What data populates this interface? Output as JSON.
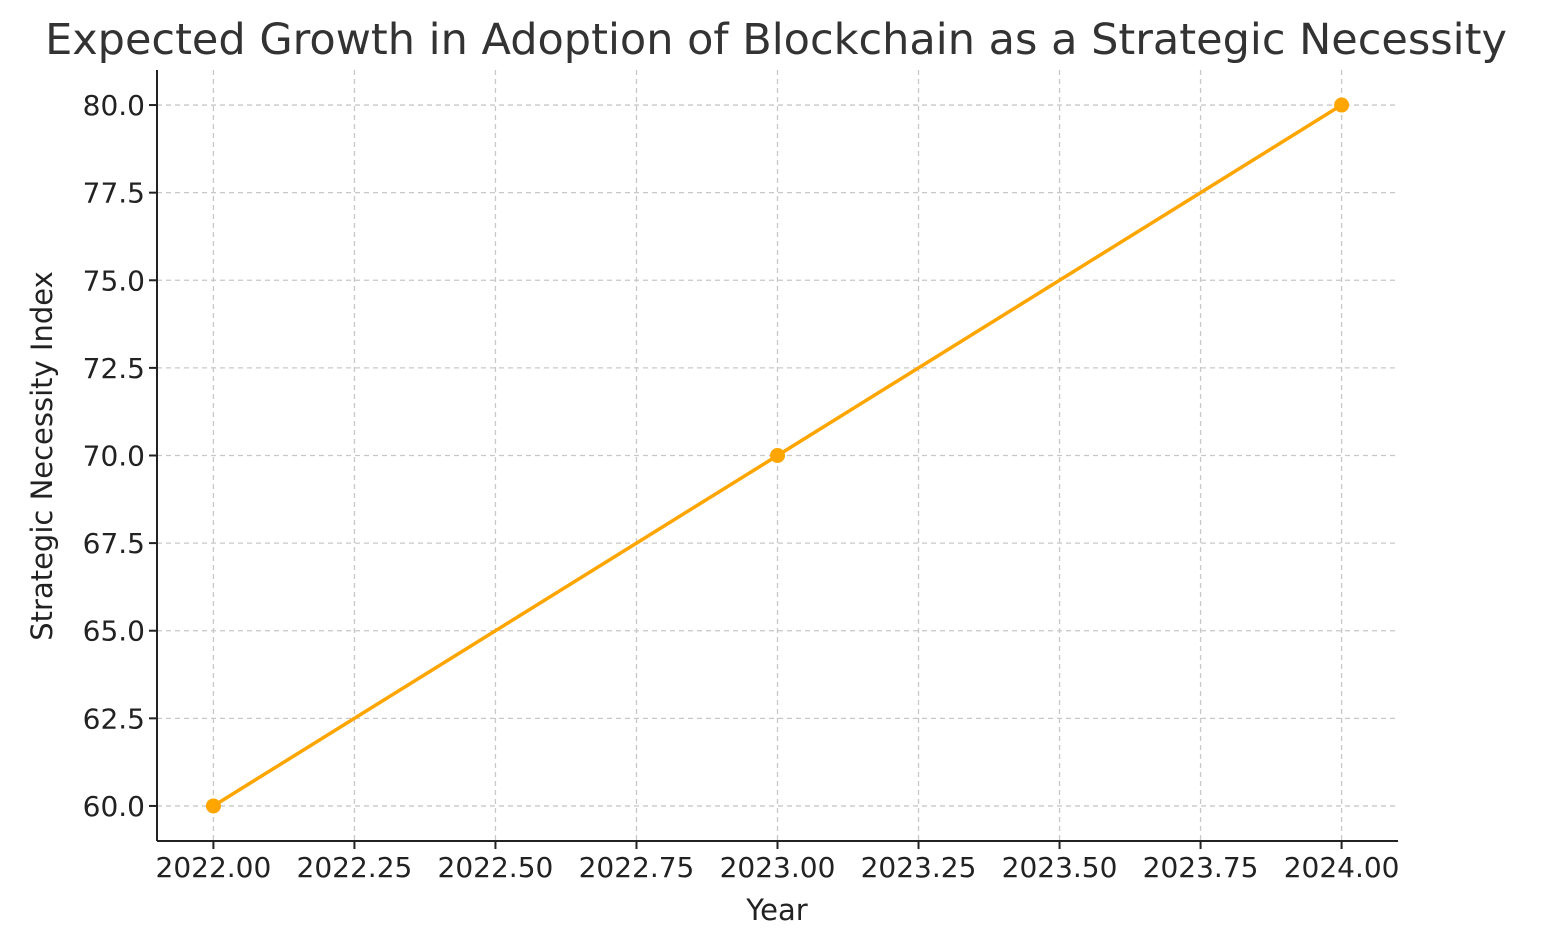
{
  "chart_data": {
    "type": "line",
    "title": "Expected Growth in Adoption of Blockchain as a Strategic Necessity",
    "xlabel": "Year",
    "ylabel": "Strategic Necessity Index",
    "x": [
      2022,
      2023,
      2024
    ],
    "series": [
      {
        "name": "",
        "values": [
          60,
          70,
          80
        ],
        "color": "#ffa500",
        "marker": "circle"
      }
    ],
    "xlim": [
      2021.9,
      2024.1
    ],
    "ylim": [
      59,
      81
    ],
    "x_ticks": [
      "2022.00",
      "2022.25",
      "2022.50",
      "2022.75",
      "2023.00",
      "2023.25",
      "2023.50",
      "2023.75",
      "2024.00"
    ],
    "y_ticks": [
      "60.0",
      "62.5",
      "65.0",
      "67.5",
      "70.0",
      "72.5",
      "75.0",
      "77.5",
      "80.0"
    ],
    "grid": true,
    "legend": "none"
  }
}
